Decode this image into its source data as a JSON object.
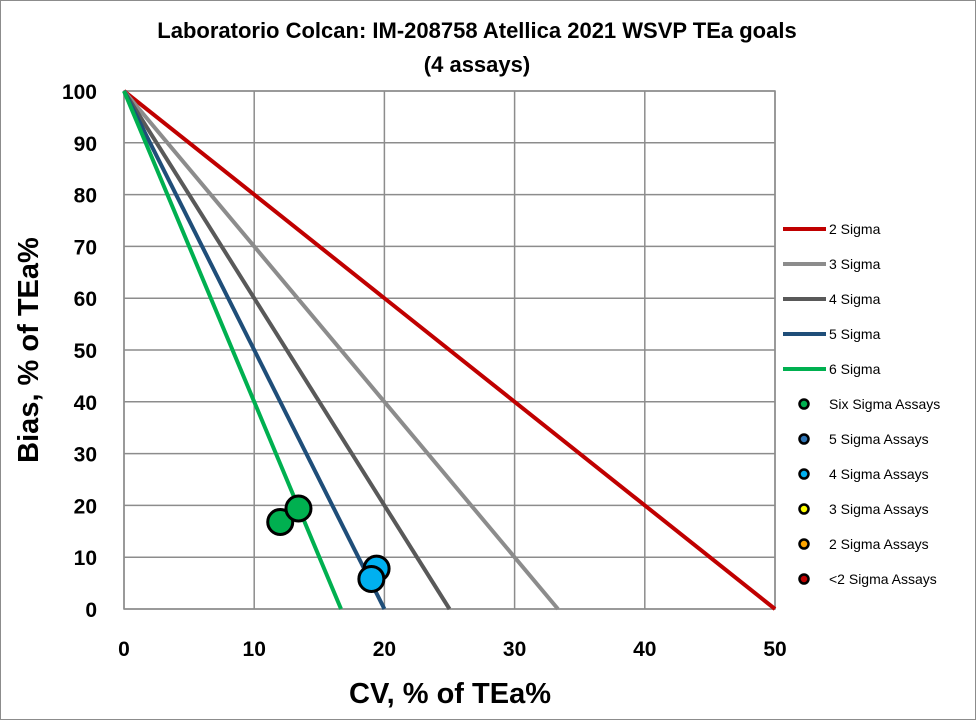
{
  "chart_data": {
    "type": "scatter",
    "title": "Laboratorio Colcan: IM-208758 Atellica 2021 WSVP TEa goals",
    "subtitle": "(4 assays)",
    "xlabel": "CV, % of TEa%",
    "ylabel": "Bias, % of TEa%",
    "xlim": [
      0,
      50
    ],
    "ylim": [
      0,
      100
    ],
    "xticks": [
      0,
      10,
      20,
      30,
      40,
      50
    ],
    "yticks": [
      0,
      10,
      20,
      30,
      40,
      50,
      60,
      70,
      80,
      90,
      100
    ],
    "grid": true,
    "legend_placement": "right",
    "lines": [
      {
        "name": "2 Sigma",
        "color": "#C00000",
        "points": [
          [
            0,
            100
          ],
          [
            50,
            0
          ]
        ]
      },
      {
        "name": "3 Sigma",
        "color": "#8C8C8C",
        "points": [
          [
            0,
            100
          ],
          [
            33.33,
            0
          ]
        ]
      },
      {
        "name": "4 Sigma",
        "color": "#595959",
        "points": [
          [
            0,
            100
          ],
          [
            25,
            0
          ]
        ]
      },
      {
        "name": "5 Sigma",
        "color": "#1F4E79",
        "points": [
          [
            0,
            100
          ],
          [
            20,
            0
          ]
        ]
      },
      {
        "name": "6 Sigma",
        "color": "#00B050",
        "points": [
          [
            0,
            100
          ],
          [
            16.67,
            0
          ]
        ]
      }
    ],
    "point_series": [
      {
        "name": "Six Sigma Assays",
        "color": "#00B050",
        "points": [
          [
            12.0,
            16.8
          ],
          [
            13.4,
            19.4
          ]
        ]
      },
      {
        "name": "5 Sigma Assays",
        "color": "#2E75B6",
        "points": []
      },
      {
        "name": "4 Sigma Assays",
        "color": "#00B0F0",
        "points": [
          [
            19.4,
            7.8
          ],
          [
            19.0,
            5.8
          ]
        ]
      },
      {
        "name": "3 Sigma Assays",
        "color": "#FFFF00",
        "points": []
      },
      {
        "name": "2 Sigma Assays",
        "color": "#FFA500",
        "points": []
      },
      {
        "name": "<2 Sigma Assays",
        "color": "#C00000",
        "points": []
      }
    ]
  }
}
